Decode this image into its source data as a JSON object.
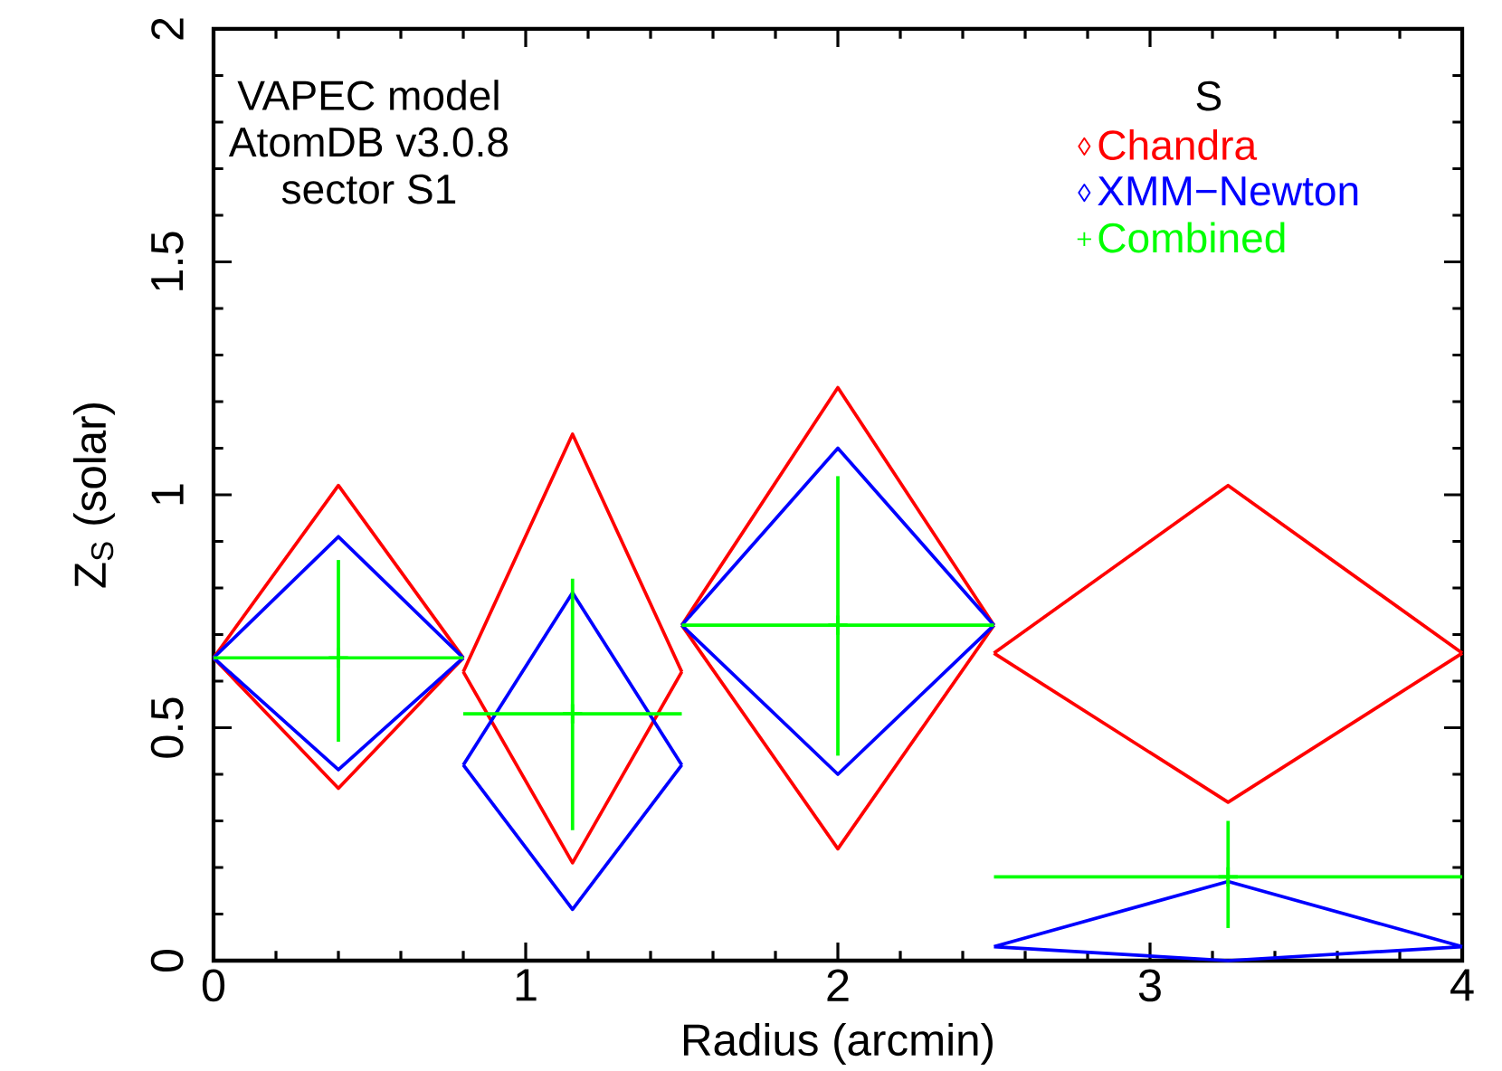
{
  "chart_data": {
    "type": "line",
    "xlabel": "Radius (arcmin)",
    "ylabel": "Z$_{S}$ (solar)",
    "legend_title": "S",
    "legend": "top right",
    "annotations": [
      "VAPEC model",
      "AtomDB v3.0.8",
      "sector S1"
    ],
    "series": [
      {
        "name": "Chandra",
        "color": "#ff0000",
        "x": [
          0,
          0.4,
          0.8,
          null,
          0,
          0.4,
          0.8,
          null,
          0.8,
          1.15,
          1.5,
          null,
          0.8,
          1.15,
          1.5,
          null,
          1.5,
          2.0,
          2.5,
          null,
          1.5,
          2.0,
          2.5,
          null,
          2.5,
          3.25,
          4,
          null,
          2.5,
          3.25,
          4
        ],
        "values": [
          0.65,
          1.02,
          0.65,
          null,
          0.65,
          0.37,
          0.65,
          null,
          0.62,
          1.13,
          0.62,
          null,
          0.62,
          0.21,
          0.62,
          null,
          0.72,
          1.23,
          0.72,
          null,
          0.72,
          0.24,
          0.72,
          null,
          0.66,
          1.02,
          0.66,
          null,
          0.66,
          0.34,
          0.66
        ]
      },
      {
        "name": "XMM−Newton",
        "color": "#0000ff",
        "x": [
          0,
          0.4,
          0.8,
          null,
          0,
          0.4,
          0.8,
          null,
          0.8,
          1.15,
          1.5,
          null,
          0.8,
          1.15,
          1.5,
          null,
          1.5,
          2.0,
          2.5,
          null,
          1.5,
          2.0,
          2.5,
          null,
          2.5,
          3.25,
          4,
          null,
          2.5,
          3.25,
          4
        ],
        "values": [
          0.65,
          0.91,
          0.65,
          null,
          0.65,
          0.41,
          0.65,
          null,
          0.42,
          0.79,
          0.42,
          null,
          0.42,
          0.11,
          0.42,
          null,
          0.72,
          1.1,
          0.72,
          null,
          0.72,
          0.4,
          0.72,
          null,
          0.03,
          0.17,
          0.03,
          null,
          0.03,
          0,
          0.03
        ]
      },
      {
        "name": "Combined",
        "color": "#00ff00",
        "type": "scatter",
        "marker": "cross",
        "x": [
          0.4,
          1.15,
          2.0,
          3.25
        ],
        "values": [
          0.65,
          0.53,
          0.72,
          0.18
        ],
        "errors": [
          [
            0.47,
            0.86
          ],
          [
            0.28,
            0.82
          ],
          [
            0.44,
            1.04
          ],
          [
            0.07,
            0.3
          ]
        ],
        "xerrors": [
          [
            0,
            0.8
          ],
          [
            0.8,
            1.5
          ],
          [
            1.5,
            2.5
          ],
          [
            2.5,
            4
          ]
        ]
      }
    ],
    "xlim": [
      0,
      4
    ],
    "ylim": [
      0,
      2
    ],
    "xticks": [
      0,
      1,
      2,
      3,
      4
    ],
    "yticks": [
      0,
      0.5,
      1,
      1.5,
      2
    ]
  }
}
